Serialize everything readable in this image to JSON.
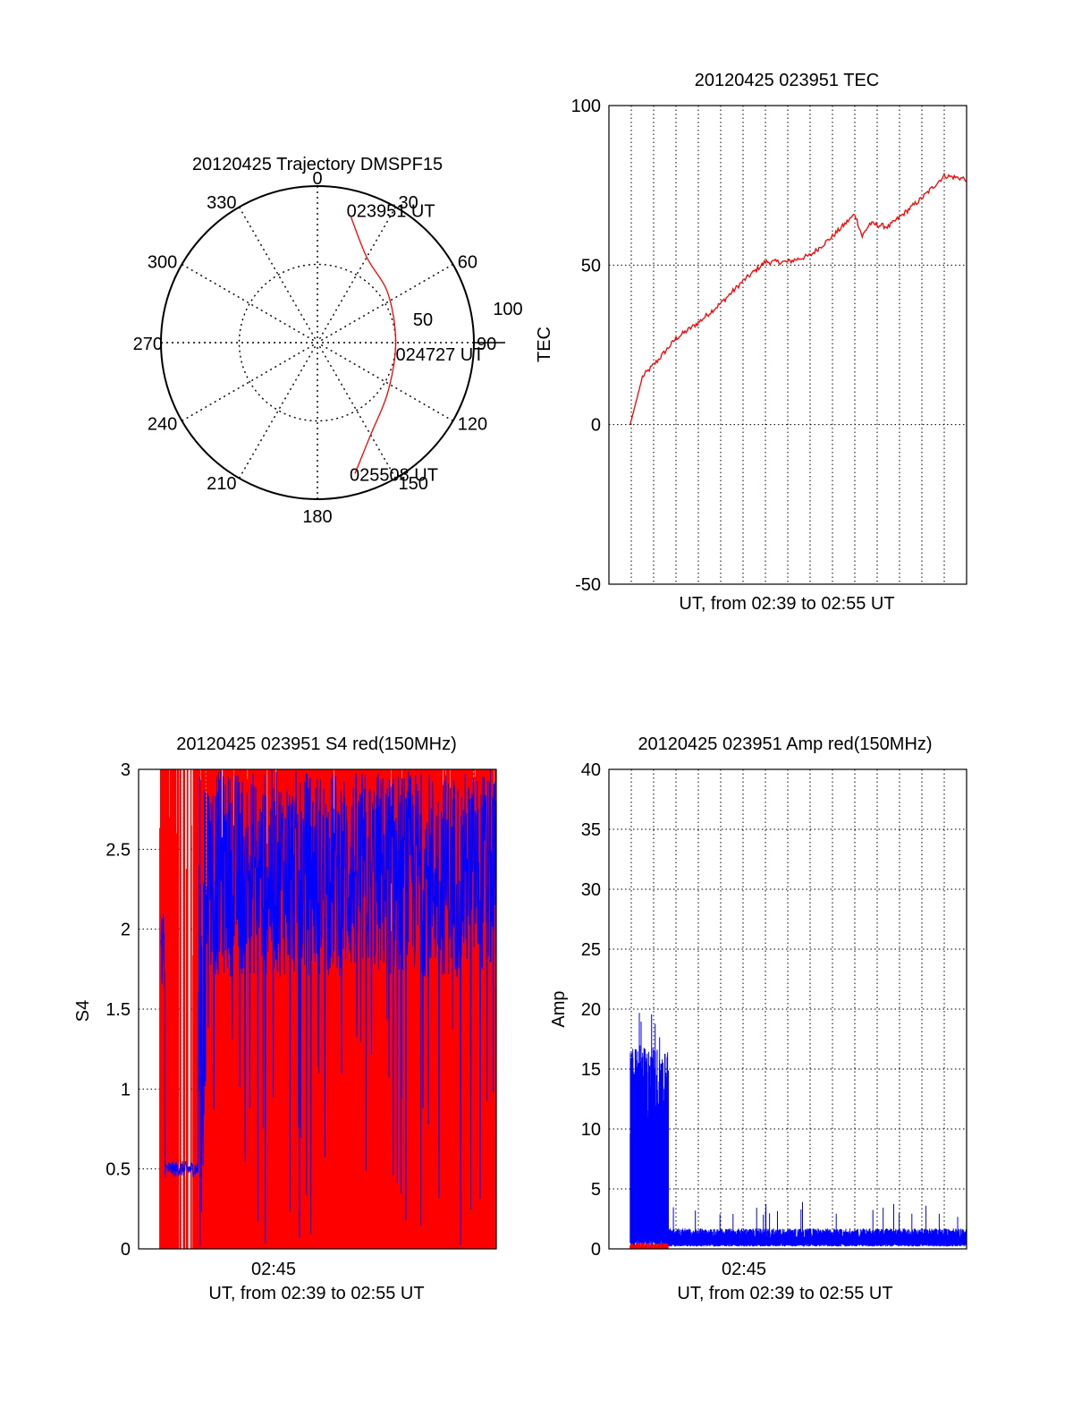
{
  "chart_data": [
    {
      "type": "polar",
      "title": "20120425 Trajectory DMSPF15",
      "azimuth_labels": [
        "0",
        "30",
        "60",
        "90",
        "120",
        "150",
        "180",
        "210",
        "240",
        "270",
        "300",
        "330"
      ],
      "radial_labels": [
        "50",
        "100"
      ],
      "rlim": [
        0,
        100
      ],
      "trace_color": "#ff0000",
      "trajectory": [
        {
          "az": 15,
          "r": 83
        },
        {
          "az": 30,
          "r": 63
        },
        {
          "az": 55,
          "r": 55
        },
        {
          "az": 90,
          "r": 50
        },
        {
          "az": 125,
          "r": 55
        },
        {
          "az": 150,
          "r": 68
        },
        {
          "az": 164,
          "r": 87
        }
      ],
      "annotations": [
        {
          "text": "023951 UT",
          "az": 15,
          "r": 83
        },
        {
          "text": "024727 UT",
          "az": 90,
          "r": 50
        },
        {
          "text": "025508 UT",
          "az": 164,
          "r": 87
        }
      ]
    },
    {
      "type": "line",
      "title": "20120425 023951 TEC",
      "xlabel": "UT, from 02:39 to 02:55 UT",
      "ylabel": "TEC",
      "xlim": [
        "02:39:00",
        "02:55:00"
      ],
      "ylim": [
        -50,
        100
      ],
      "yticks": [
        "100",
        "50",
        "0",
        "-50"
      ],
      "grid": true,
      "series": [
        {
          "color": "#ff0000",
          "x": [
            "02:39:57",
            "02:40:30",
            "02:41:10",
            "02:42:00",
            "02:43:00",
            "02:44:00",
            "02:45:00",
            "02:46:00",
            "02:47:00",
            "02:48:00",
            "02:49:00",
            "02:50:00",
            "02:50:20",
            "02:50:40",
            "02:51:30",
            "02:52:00",
            "02:53:00",
            "02:54:00",
            "02:55:00"
          ],
          "y": [
            0,
            15,
            20,
            27,
            32,
            38,
            45,
            51,
            51,
            53,
            59,
            66,
            59,
            63,
            62,
            65,
            71,
            78,
            77
          ]
        }
      ]
    },
    {
      "type": "line",
      "title": "20120425 023951 S4 red(150MHz)",
      "xlabel": "UT, from 02:39 to 02:55 UT",
      "ylabel": "S4",
      "xlim": [
        "02:39:00",
        "02:55:00"
      ],
      "ylim": [
        0,
        3
      ],
      "yticks": [
        "3",
        "2.5",
        "2",
        "1.5",
        "1",
        "0.5",
        "0"
      ],
      "xticks": [
        "02:45"
      ],
      "grid": true,
      "series": [
        {
          "color": "#ff0000",
          "min": 0,
          "max": 3
        },
        {
          "color": "#0000ff",
          "min": 0.45,
          "max": 3
        }
      ]
    },
    {
      "type": "line",
      "title": "20120425 023951 Amp red(150MHz)",
      "xlabel": "UT, from 02:39 to 02:55 UT",
      "ylabel": "Amp",
      "xlim": [
        "02:39:00",
        "02:55:00"
      ],
      "ylim": [
        0,
        40
      ],
      "yticks": [
        "40",
        "35",
        "30",
        "25",
        "20",
        "15",
        "10",
        "5",
        "0"
      ],
      "xticks": [
        "02:45"
      ],
      "grid": true,
      "series": [
        {
          "color": "#0000ff",
          "max": 20.5
        },
        {
          "color": "#ff0000",
          "max": 0.5
        }
      ]
    }
  ]
}
